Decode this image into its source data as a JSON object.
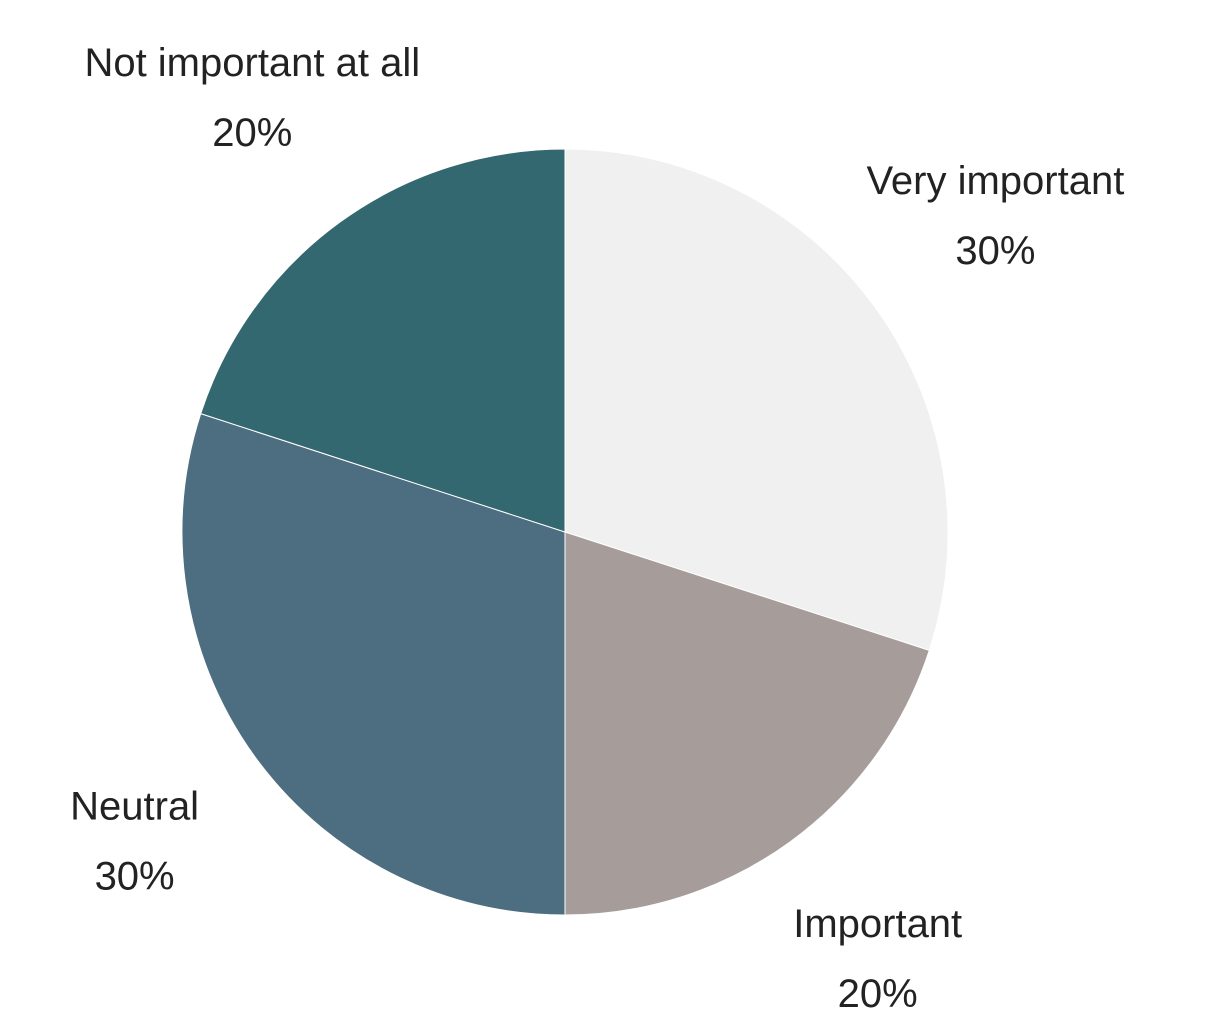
{
  "chart_data": {
    "type": "pie",
    "categories": [
      "Very important",
      "Important",
      "Neutral",
      "Not important at all"
    ],
    "values": [
      30,
      20,
      30,
      20
    ],
    "value_labels": [
      "30%",
      "20%",
      "30%",
      "20%"
    ],
    "colors": [
      "#f0f0f0",
      "#a69d9b",
      "#4d6d80",
      "#336870"
    ]
  }
}
